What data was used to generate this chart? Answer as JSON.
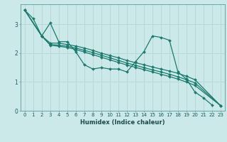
{
  "xlabel": "Humidex (Indice chaleur)",
  "background_color": "#cce9e9",
  "grid_color": "#b8d8d8",
  "line_color": "#1a7a6e",
  "xlim": [
    -0.5,
    23.5
  ],
  "ylim": [
    0,
    3.7
  ],
  "yticks": [
    0,
    1,
    2,
    3
  ],
  "xticks": [
    0,
    1,
    2,
    3,
    4,
    5,
    6,
    7,
    8,
    9,
    10,
    11,
    12,
    13,
    14,
    15,
    16,
    17,
    18,
    19,
    20,
    21,
    22,
    23
  ],
  "lines": [
    {
      "x": [
        0,
        1,
        2,
        3,
        4,
        5,
        6,
        7,
        8,
        9,
        10,
        11,
        12,
        13,
        14,
        15,
        16,
        17,
        18,
        19,
        20,
        21,
        22
      ],
      "y": [
        3.5,
        3.2,
        2.6,
        3.05,
        2.4,
        2.4,
        2.05,
        1.6,
        1.45,
        1.5,
        1.45,
        1.45,
        1.35,
        1.7,
        2.05,
        2.6,
        2.55,
        2.45,
        1.35,
        1.1,
        0.65,
        0.45,
        0.2
      ]
    },
    {
      "x": [
        0,
        2,
        3,
        4,
        5,
        6,
        7,
        8,
        9,
        10,
        11,
        12,
        13,
        14,
        15,
        16,
        17,
        18,
        19,
        20,
        23
      ],
      "y": [
        3.5,
        2.6,
        2.35,
        2.35,
        2.3,
        2.25,
        2.18,
        2.1,
        2.0,
        1.92,
        1.84,
        1.75,
        1.67,
        1.6,
        1.52,
        1.45,
        1.38,
        1.3,
        1.2,
        1.08,
        0.18
      ]
    },
    {
      "x": [
        0,
        2,
        3,
        4,
        5,
        6,
        7,
        8,
        9,
        10,
        11,
        12,
        13,
        14,
        15,
        16,
        17,
        18,
        19,
        20,
        23
      ],
      "y": [
        3.5,
        2.6,
        2.3,
        2.28,
        2.24,
        2.18,
        2.1,
        2.02,
        1.93,
        1.84,
        1.75,
        1.66,
        1.58,
        1.5,
        1.42,
        1.35,
        1.27,
        1.18,
        1.08,
        0.97,
        0.18
      ]
    },
    {
      "x": [
        0,
        2,
        3,
        4,
        5,
        6,
        7,
        8,
        9,
        10,
        11,
        12,
        13,
        14,
        15,
        16,
        17,
        18,
        19,
        20,
        23
      ],
      "y": [
        3.5,
        2.6,
        2.28,
        2.24,
        2.2,
        2.13,
        2.04,
        1.95,
        1.86,
        1.77,
        1.68,
        1.59,
        1.51,
        1.43,
        1.35,
        1.27,
        1.19,
        1.1,
        1.0,
        0.88,
        0.18
      ]
    }
  ]
}
